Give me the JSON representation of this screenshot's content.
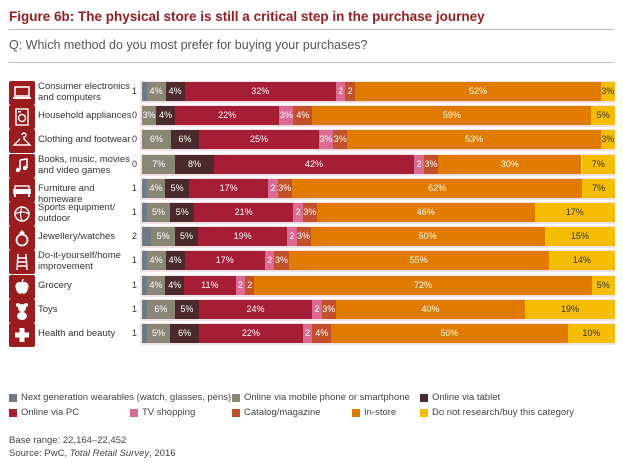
{
  "header": {
    "title": "Figure 6b: The physical store is still a critical step in the purchase journey",
    "question": "Q: Which method do you most prefer for buying your purchases?"
  },
  "chart_data": {
    "type": "bar",
    "orientation": "horizontal",
    "stacked": true,
    "categories": [
      "Consumer electronics and computers",
      "Household appliances",
      "Clothing and footwear",
      "Books, music, movies and video games",
      "Furniture and homeware",
      "Sports equipment/ outdoor",
      "Jewellery/watches",
      "Do-it-yourself/home improvement",
      "Grocery",
      "Toys",
      "Health and beauty"
    ],
    "category_icons": [
      "computer-icon",
      "washing-machine-icon",
      "hanger-icon",
      "music-note-icon",
      "sofa-icon",
      "ball-icon",
      "ring-icon",
      "ladder-icon",
      "apple-icon",
      "teddy-bear-icon",
      "medical-cross-icon"
    ],
    "series": [
      {
        "name": "Next generation wearables (watch, glasses, pens)",
        "color": "#6d7b86",
        "values": [
          1,
          0,
          0,
          0,
          1,
          1,
          2,
          1,
          1,
          1,
          1
        ],
        "labels": [
          "1",
          "0",
          "0",
          "0",
          "1",
          "1",
          "2",
          "1",
          "1",
          "1",
          "1"
        ]
      },
      {
        "name": "Online via mobile phone or smartphone",
        "color": "#8a8674",
        "values": [
          4,
          3,
          6,
          7,
          4,
          5,
          5,
          4,
          4,
          6,
          5
        ],
        "labels": [
          "4%",
          "3%",
          "6%",
          "7%",
          "4%",
          "5%",
          "5%",
          "4%",
          "4%",
          "6%",
          "5%"
        ]
      },
      {
        "name": "Online via tablet",
        "color": "#4a2a2c",
        "values": [
          4,
          4,
          6,
          8,
          5,
          5,
          5,
          4,
          4,
          5,
          6
        ],
        "labels": [
          "4%",
          "4%",
          "6%",
          "8%",
          "5%",
          "5%",
          "5%",
          "4%",
          "4%",
          "5%",
          "6%"
        ]
      },
      {
        "name": "Online via PC",
        "color": "#a51e36",
        "values": [
          32,
          22,
          25,
          42,
          17,
          21,
          19,
          17,
          11,
          24,
          22
        ],
        "labels": [
          "32%",
          "22%",
          "25%",
          "42%",
          "17%",
          "21%",
          "19%",
          "17%",
          "11%",
          "24%",
          "22%"
        ]
      },
      {
        "name": "TV shopping",
        "color": "#dc6b93",
        "values": [
          2,
          3,
          3,
          2,
          2,
          2,
          2,
          2,
          2,
          2,
          2
        ],
        "labels": [
          "2",
          "3%",
          "3%",
          "2",
          "2",
          "2",
          "2",
          "2",
          "2",
          "2",
          "2"
        ]
      },
      {
        "name": "Catalog/magazine",
        "color": "#c2512b",
        "values": [
          2,
          4,
          3,
          3,
          3,
          3,
          3,
          3,
          2,
          3,
          4
        ],
        "labels": [
          "2",
          "4%",
          "3%",
          "3%",
          "3%",
          "3%",
          "3%",
          "3%",
          "2",
          "3%",
          "4%"
        ]
      },
      {
        "name": "In-store",
        "color": "#e07b00",
        "values": [
          52,
          59,
          53,
          30,
          62,
          46,
          50,
          55,
          72,
          40,
          50
        ],
        "labels": [
          "52%",
          "59%",
          "53%",
          "30%",
          "62%",
          "46%",
          "50%",
          "55%",
          "72%",
          "40%",
          "50%"
        ]
      },
      {
        "name": "Do not research/buy this category",
        "color": "#f5bd00",
        "values": [
          3,
          5,
          3,
          7,
          7,
          17,
          15,
          14,
          5,
          19,
          10
        ],
        "labels": [
          "3%",
          "5%",
          "3%",
          "7%",
          "7%",
          "17%",
          "15%",
          "14%",
          "5%",
          "19%",
          "10%"
        ]
      }
    ],
    "legend_position": "bottom",
    "xlim": [
      0,
      100
    ]
  },
  "footnotes": {
    "base": "Base range: 22,164–22,452",
    "source_prefix": "Source: PwC, ",
    "source_title": "Total Retail Survey",
    "source_suffix": ", 2016"
  }
}
